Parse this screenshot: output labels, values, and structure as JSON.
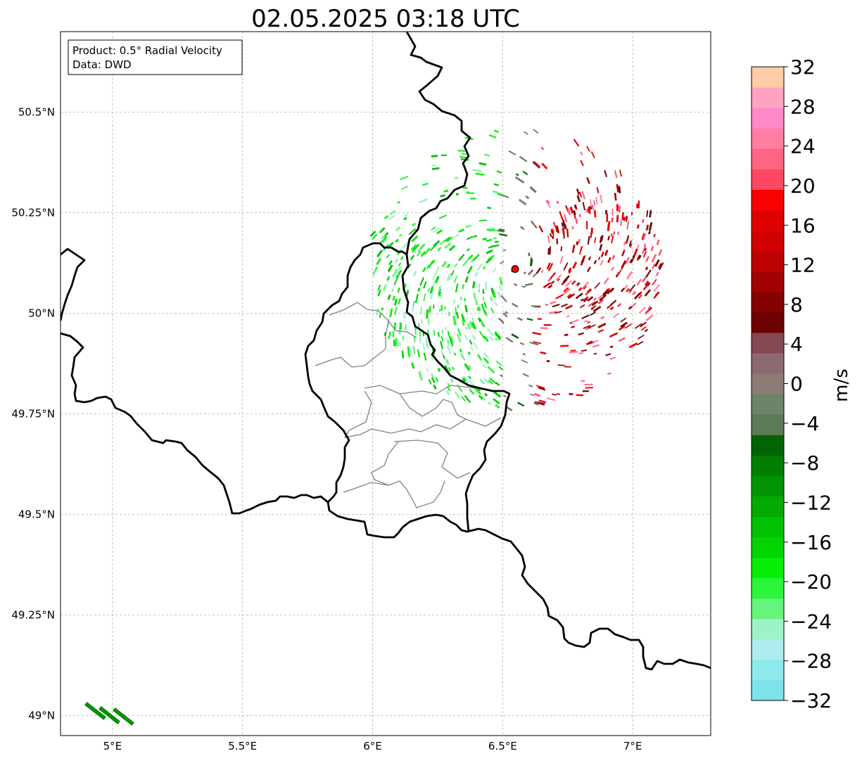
{
  "title": "02.05.2025 03:18 UTC",
  "info_box": {
    "product": "Product: 0.5° Radial Velocity",
    "data": "Data: DWD"
  },
  "map": {
    "lon_range": [
      4.8,
      7.3
    ],
    "lat_range": [
      48.95,
      50.7
    ],
    "lon_ticks": [
      {
        "value": 5.0,
        "label": "5°E"
      },
      {
        "value": 5.5,
        "label": "5.5°E"
      },
      {
        "value": 6.0,
        "label": "6°E"
      },
      {
        "value": 6.5,
        "label": "6.5°E"
      },
      {
        "value": 7.0,
        "label": "7°E"
      }
    ],
    "lat_ticks": [
      {
        "value": 50.5,
        "label": "50.5°N"
      },
      {
        "value": 50.25,
        "label": "50.25°N"
      },
      {
        "value": 50.0,
        "label": "50°N"
      },
      {
        "value": 49.75,
        "label": "49.75°N"
      },
      {
        "value": 49.5,
        "label": "49.5°N"
      },
      {
        "value": 49.25,
        "label": "49.25°N"
      },
      {
        "value": 49.0,
        "label": "49°N"
      }
    ],
    "radar_site": {
      "lon": 6.548,
      "lat": 50.11,
      "color": "#ee0000"
    },
    "gridlines": true
  },
  "colorbar": {
    "label": "m/s",
    "min": -32,
    "max": 32,
    "tick_values": [
      -32,
      -28,
      -24,
      -20,
      -16,
      -12,
      -8,
      -4,
      0,
      4,
      8,
      12,
      16,
      20,
      24,
      28,
      32
    ],
    "tick_labels": [
      "−32",
      "−28",
      "−24",
      "−20",
      "−16",
      "−12",
      "−8",
      "−4",
      "0",
      "4",
      "8",
      "12",
      "16",
      "20",
      "24",
      "28",
      "32"
    ],
    "colors": [
      "#7ee3e8",
      "#8ee9ec",
      "#aeecee",
      "#9ef2c8",
      "#66f47e",
      "#2cf63c",
      "#06ee06",
      "#02d402",
      "#02c002",
      "#02aa02",
      "#029402",
      "#027e02",
      "#026402",
      "#5c7a58",
      "#6c8468",
      "#8c7a74",
      "#8c6a70",
      "#844852",
      "#6c0202",
      "#860202",
      "#a20202",
      "#bc0202",
      "#d20202",
      "#e00202",
      "#f80202",
      "#fc4862",
      "#ff6482",
      "#ff7ea2",
      "#ff88c8",
      "#ffa4c0",
      "#ffcca8"
    ]
  }
}
